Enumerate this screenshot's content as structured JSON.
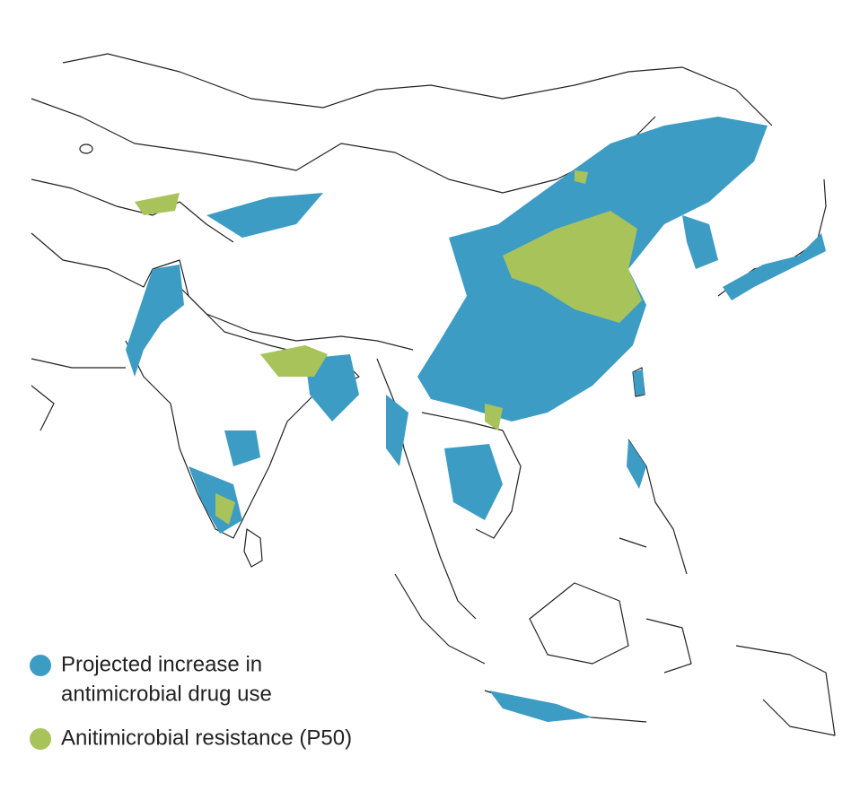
{
  "legend": {
    "items": [
      {
        "label_lines": [
          "Projected increase in",
          "antimicrobial drug use"
        ],
        "color": "#3d9cc4"
      },
      {
        "label_lines": [
          "Anitimicrobial resistance (P50)"
        ],
        "color": "#a8c35a"
      }
    ]
  }
}
